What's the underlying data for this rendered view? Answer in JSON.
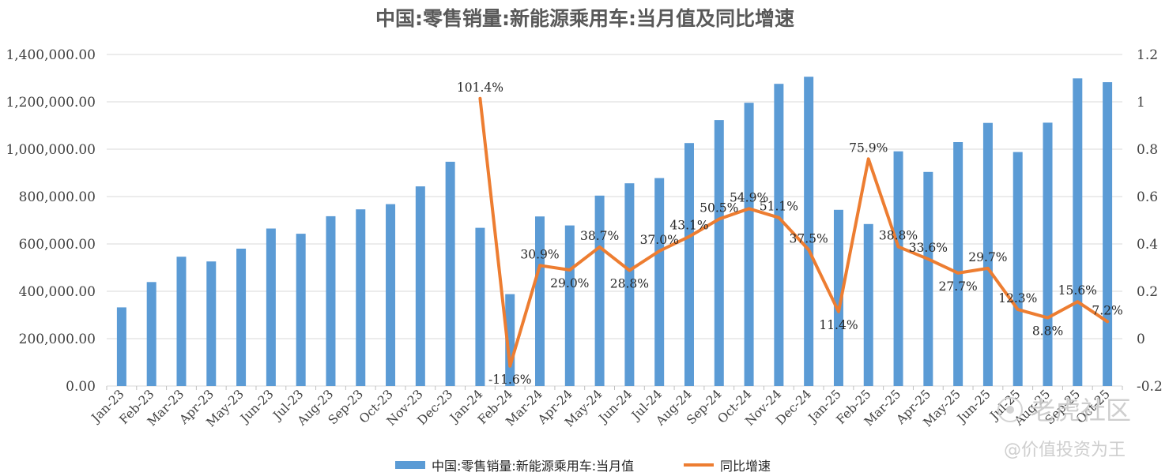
{
  "chart_data": {
    "type": "bar",
    "title": "中国:零售销量:新能源乘用车:当月值及同比增速",
    "categories": [
      "Jan-23",
      "Feb-23",
      "Mar-23",
      "Apr-23",
      "May-23",
      "Jun-23",
      "Jul-23",
      "Aug-23",
      "Sep-23",
      "Oct-23",
      "Nov-23",
      "Dec-23",
      "Jan-24",
      "Feb-24",
      "Mar-24",
      "Apr-24",
      "May-24",
      "Jun-24",
      "Jul-24",
      "Aug-24",
      "Sep-24",
      "Oct-24",
      "Nov-24",
      "Dec-24",
      "Jan-25",
      "Feb-25",
      "Mar-25",
      "Apr-25",
      "May-25",
      "Jun-25",
      "Jul-25",
      "Aug-25",
      "Sep-25",
      "Oct-25"
    ],
    "y_left": {
      "ylim": [
        0,
        1400000
      ],
      "ticks": [
        "0.00",
        "200,000.00",
        "400,000.00",
        "600,000.00",
        "800,000.00",
        "1,000,000.00",
        "1,200,000.00",
        "1,400,000.00"
      ]
    },
    "y_right": {
      "ylim": [
        -0.2,
        1.2
      ],
      "ticks": [
        "-0.2",
        "0",
        "0.2",
        "0.4",
        "0.6",
        "0.8",
        "1",
        "1.2"
      ]
    },
    "grid": true,
    "legend_position": "bottom",
    "series": [
      {
        "name": "中国:零售销量:新能源乘用车:当月值",
        "type": "bar",
        "axis": "left",
        "color": "#5b9bd5",
        "values": [
          332000,
          439000,
          546000,
          526000,
          580000,
          665000,
          643000,
          717000,
          746000,
          768000,
          843000,
          947000,
          668000,
          388000,
          716000,
          678000,
          804000,
          856000,
          878000,
          1026000,
          1123000,
          1196000,
          1276000,
          1306000,
          744000,
          684000,
          991000,
          904000,
          1030000,
          1111000,
          988000,
          1112000,
          1299000,
          1283000
        ]
      },
      {
        "name": "同比增速",
        "type": "line",
        "axis": "right",
        "color": "#ed7d31",
        "values": [
          null,
          null,
          null,
          null,
          null,
          null,
          null,
          null,
          null,
          null,
          null,
          null,
          1.014,
          -0.116,
          0.309,
          0.29,
          0.387,
          0.288,
          0.37,
          0.431,
          0.505,
          0.549,
          0.511,
          0.375,
          0.114,
          0.759,
          0.388,
          0.336,
          0.277,
          0.297,
          0.123,
          0.088,
          0.156,
          0.072
        ],
        "data_labels": [
          "",
          "",
          "",
          "",
          "",
          "",
          "",
          "",
          "",
          "",
          "",
          "",
          "101.4%",
          "-11.6%",
          "30.9%",
          "29.0%",
          "38.7%",
          "28.8%",
          "37.0%",
          "43.1%",
          "50.5%",
          "54.9%",
          "51.1%",
          "37.5%",
          "11.4%",
          "75.9%",
          "38.8%",
          "33.6%",
          "27.7%",
          "29.7%",
          "12.3%",
          "8.8%",
          "15.6%",
          "7.2%"
        ]
      }
    ]
  },
  "watermark": {
    "line1": "老虎社区",
    "line2": "@价值投资为王"
  }
}
